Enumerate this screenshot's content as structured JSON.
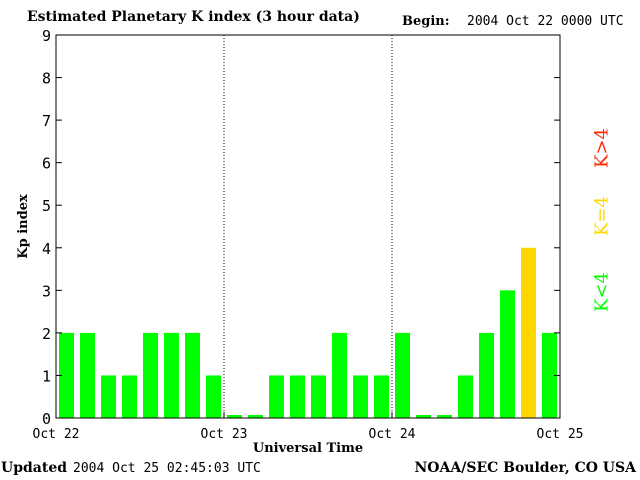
{
  "header": {
    "title": "Estimated Planetary K index (3 hour data)",
    "begin_label": "Begin:",
    "begin_value": "2004 Oct 22 0000 UTC"
  },
  "footer": {
    "updated_label": "Updated",
    "updated_value": "2004 Oct 25 02:45:03 UTC",
    "credit": "NOAA/SEC Boulder, CO USA"
  },
  "legend": {
    "low": {
      "label": "K<4",
      "color": "#00ff00"
    },
    "mid": {
      "label": "K=4",
      "color": "#ffd700"
    },
    "high": {
      "label": "K>4",
      "color": "#ff2a00"
    }
  },
  "chart_data": {
    "type": "bar",
    "title": "Estimated Planetary K index (3 hour data)",
    "xlabel": "Universal Time",
    "ylabel": "Kp index",
    "ylim": [
      0,
      9
    ],
    "yticks": [
      0,
      1,
      2,
      3,
      4,
      5,
      6,
      7,
      8,
      9
    ],
    "x_tick_labels": [
      "Oct 22",
      "Oct 23",
      "Oct 24",
      "Oct 25"
    ],
    "day_separators": true,
    "grid": false,
    "values": [
      2,
      2,
      1,
      1,
      2,
      2,
      2,
      1,
      0,
      0,
      1,
      1,
      1,
      2,
      1,
      1,
      2,
      0,
      0,
      1,
      2,
      3,
      4,
      2
    ],
    "colors": {
      "below_4": "#00ff00",
      "equal_4": "#ffd700",
      "above_4": "#ff2a00"
    }
  }
}
